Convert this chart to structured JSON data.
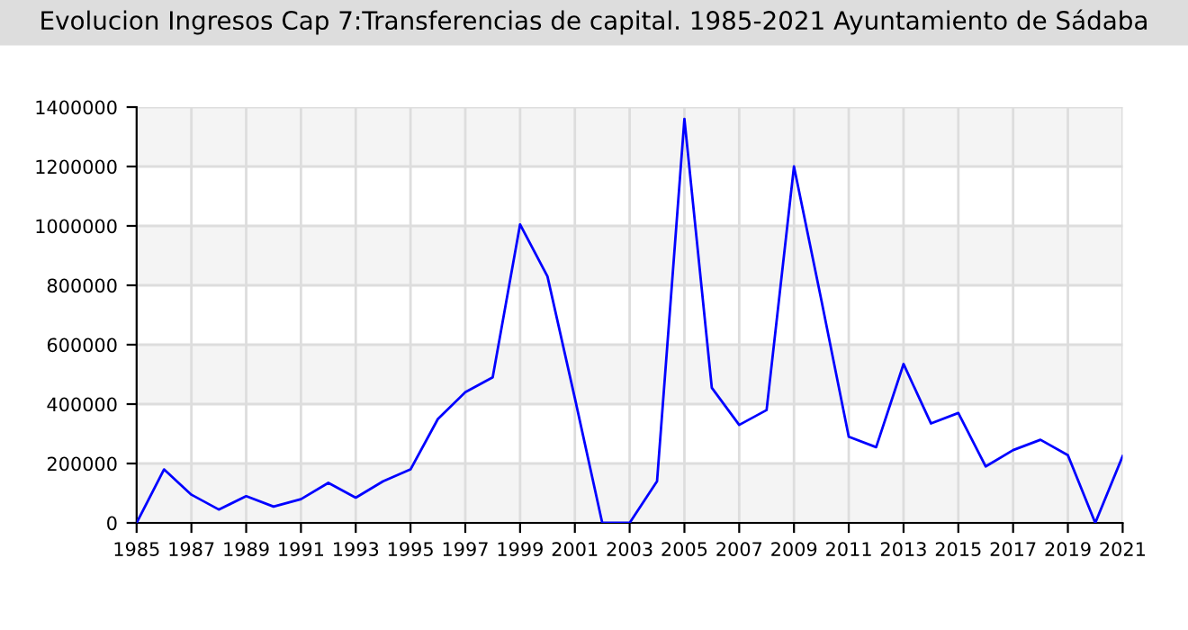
{
  "chart_data": {
    "type": "line",
    "title": "Evolucion Ingresos Cap 7:Transferencias de capital. 1985-2021 Ayuntamiento de Sádaba",
    "x": [
      1985,
      1986,
      1987,
      1988,
      1989,
      1990,
      1991,
      1992,
      1993,
      1994,
      1995,
      1996,
      1997,
      1998,
      1999,
      2000,
      2001,
      2002,
      2003,
      2004,
      2005,
      2006,
      2007,
      2008,
      2009,
      2010,
      2011,
      2012,
      2013,
      2014,
      2015,
      2016,
      2017,
      2018,
      2019,
      2020,
      2021
    ],
    "series": [
      {
        "color": "#0000ff",
        "values": [
          0,
          180000,
          95000,
          45000,
          90000,
          55000,
          80000,
          135000,
          85000,
          140000,
          180000,
          350000,
          440000,
          490000,
          1005000,
          830000,
          420000,
          0,
          0,
          140000,
          1360000,
          455000,
          330000,
          380000,
          1200000,
          750000,
          290000,
          255000,
          535000,
          335000,
          370000,
          190000,
          245000,
          280000,
          228000,
          0,
          225000
        ]
      }
    ],
    "xlim": [
      1985,
      2021
    ],
    "xticks": [
      1985,
      1987,
      1989,
      1991,
      1993,
      1995,
      1997,
      1999,
      2001,
      2003,
      2005,
      2007,
      2009,
      2011,
      2013,
      2015,
      2017,
      2019,
      2021
    ],
    "ylim": [
      0,
      1400000
    ],
    "yticks": [
      0,
      200000,
      400000,
      600000,
      800000,
      1000000,
      1200000,
      1400000
    ],
    "grid": true,
    "marker": "none",
    "line_style": "solid"
  }
}
